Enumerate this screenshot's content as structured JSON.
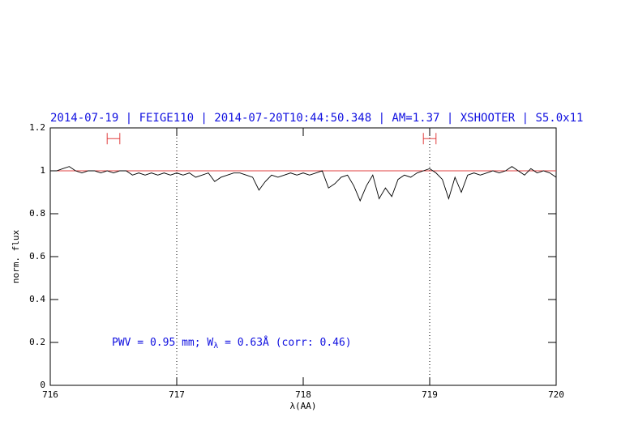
{
  "chart_data": {
    "type": "line",
    "title": "2014-07-19 | FEIGE110 | 2014-07-20T10:44:50.348 | AM=1.37 | XSHOOTER | S5.0x11",
    "annotation": [
      "PWV = 0.95 mm; W",
      "λ",
      " = 0.63Å (corr: 0.46)"
    ],
    "xlabel": "λ(AA)",
    "ylabel": "norm. flux",
    "x": [
      716.0,
      716.05,
      716.1,
      716.15,
      716.2,
      716.25,
      716.3,
      716.35,
      716.4,
      716.45,
      716.5,
      716.55,
      716.6,
      716.65,
      716.7,
      716.75,
      716.8,
      716.85,
      716.9,
      716.95,
      717.0,
      717.05,
      717.1,
      717.15,
      717.2,
      717.25,
      717.3,
      717.35,
      717.4,
      717.45,
      717.5,
      717.55,
      717.6,
      717.65,
      717.7,
      717.75,
      717.8,
      717.85,
      717.9,
      717.95,
      718.0,
      718.05,
      718.1,
      718.15,
      718.2,
      718.25,
      718.3,
      718.35,
      718.4,
      718.45,
      718.5,
      718.55,
      718.6,
      718.65,
      718.7,
      718.75,
      718.8,
      718.85,
      718.9,
      718.95,
      719.0,
      719.05,
      719.1,
      719.15,
      719.2,
      719.25,
      719.3,
      719.35,
      719.4,
      719.45,
      719.5,
      719.55,
      719.6,
      719.65,
      719.7,
      719.75,
      719.8,
      719.85,
      719.9,
      719.95,
      720.0
    ],
    "series": [
      {
        "color": "#000000",
        "values": [
          1.0,
          1.0,
          1.01,
          1.02,
          1.0,
          0.99,
          1.0,
          1.0,
          0.99,
          1.0,
          0.99,
          1.0,
          1.0,
          0.98,
          0.99,
          0.98,
          0.99,
          0.98,
          0.99,
          0.98,
          0.99,
          0.98,
          0.99,
          0.97,
          0.98,
          0.99,
          0.95,
          0.97,
          0.98,
          0.99,
          0.99,
          0.98,
          0.97,
          0.91,
          0.95,
          0.98,
          0.97,
          0.98,
          0.99,
          0.98,
          0.99,
          0.98,
          0.99,
          1.0,
          0.92,
          0.94,
          0.97,
          0.98,
          0.93,
          0.86,
          0.93,
          0.98,
          0.87,
          0.92,
          0.88,
          0.96,
          0.98,
          0.97,
          0.99,
          1.0,
          1.01,
          0.99,
          0.96,
          0.87,
          0.97,
          0.9,
          0.98,
          0.99,
          0.98,
          0.99,
          1.0,
          0.99,
          1.0,
          1.02,
          1.0,
          0.98,
          1.01,
          0.99,
          1.0,
          0.99,
          0.97
        ]
      }
    ],
    "hline": 1,
    "hline_color": "#e04040",
    "intervals": [
      [
        716.45,
        716.55
      ],
      [
        718.95,
        719.05
      ]
    ],
    "interval_y": 1.15,
    "interval_color": "#e04040",
    "vlines": [
      717,
      719
    ],
    "xlim": [
      716,
      720
    ],
    "ylim": [
      0,
      1.2
    ],
    "xticks": [
      716,
      717,
      718,
      719,
      720
    ],
    "yticks": [
      0,
      0.2,
      0.4,
      0.6,
      0.8,
      1,
      1.2
    ]
  }
}
